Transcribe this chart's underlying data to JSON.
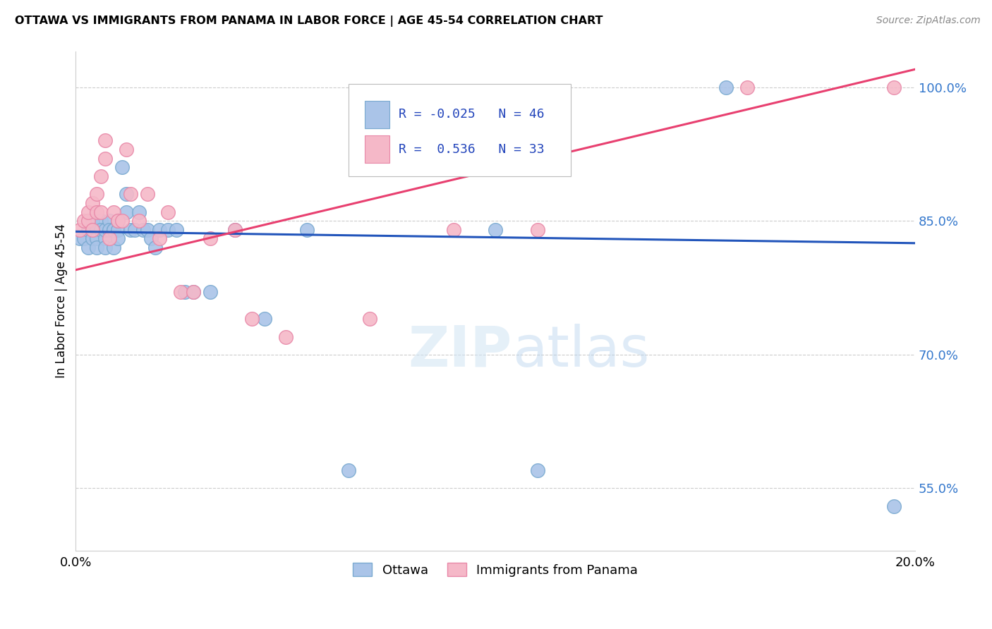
{
  "title": "OTTAWA VS IMMIGRANTS FROM PANAMA IN LABOR FORCE | AGE 45-54 CORRELATION CHART",
  "source": "Source: ZipAtlas.com",
  "ylabel": "In Labor Force | Age 45-54",
  "xlim": [
    0.0,
    0.2
  ],
  "ylim": [
    0.48,
    1.04
  ],
  "yticks": [
    0.55,
    0.7,
    0.85,
    1.0
  ],
  "ytick_labels": [
    "55.0%",
    "70.0%",
    "85.0%",
    "100.0%"
  ],
  "xticks": [
    0.0,
    0.04,
    0.08,
    0.12,
    0.16,
    0.2
  ],
  "xtick_labels": [
    "0.0%",
    "",
    "",
    "",
    "",
    "20.0%"
  ],
  "ottawa_color": "#aac4e8",
  "panama_color": "#f5b8c8",
  "ottawa_edge": "#7aaad0",
  "panama_edge": "#e888a8",
  "trend_blue": "#2255bb",
  "trend_pink": "#e84070",
  "R_ottawa": -0.025,
  "N_ottawa": 46,
  "R_panama": 0.536,
  "N_panama": 33,
  "watermark": "ZIPatlas",
  "legend_ottawa": "Ottawa",
  "legend_panama": "Immigrants from Panama",
  "blue_trend_x0": 0.0,
  "blue_trend_y0": 0.838,
  "blue_trend_x1": 0.2,
  "blue_trend_y1": 0.825,
  "pink_trend_x0": 0.0,
  "pink_trend_y0": 0.795,
  "pink_trend_x1": 0.2,
  "pink_trend_y1": 1.02,
  "ottawa_x": [
    0.001,
    0.002,
    0.003,
    0.003,
    0.004,
    0.004,
    0.005,
    0.005,
    0.005,
    0.006,
    0.006,
    0.007,
    0.007,
    0.007,
    0.008,
    0.008,
    0.009,
    0.009,
    0.009,
    0.01,
    0.01,
    0.01,
    0.011,
    0.012,
    0.012,
    0.013,
    0.014,
    0.015,
    0.016,
    0.017,
    0.018,
    0.019,
    0.02,
    0.022,
    0.024,
    0.026,
    0.028,
    0.032,
    0.038,
    0.045,
    0.055,
    0.065,
    0.1,
    0.11,
    0.155,
    0.195
  ],
  "ottawa_y": [
    0.83,
    0.83,
    0.84,
    0.82,
    0.85,
    0.83,
    0.84,
    0.83,
    0.82,
    0.85,
    0.84,
    0.83,
    0.84,
    0.82,
    0.85,
    0.84,
    0.84,
    0.82,
    0.84,
    0.84,
    0.85,
    0.83,
    0.91,
    0.88,
    0.86,
    0.84,
    0.84,
    0.86,
    0.84,
    0.84,
    0.83,
    0.82,
    0.84,
    0.84,
    0.84,
    0.77,
    0.77,
    0.77,
    0.84,
    0.74,
    0.84,
    0.57,
    0.84,
    0.57,
    1.0,
    0.53
  ],
  "panama_x": [
    0.001,
    0.002,
    0.003,
    0.003,
    0.004,
    0.004,
    0.005,
    0.005,
    0.006,
    0.006,
    0.007,
    0.007,
    0.008,
    0.009,
    0.01,
    0.011,
    0.012,
    0.013,
    0.015,
    0.017,
    0.02,
    0.022,
    0.025,
    0.028,
    0.032,
    0.038,
    0.042,
    0.05,
    0.07,
    0.09,
    0.11,
    0.16,
    0.195
  ],
  "panama_y": [
    0.84,
    0.85,
    0.85,
    0.86,
    0.84,
    0.87,
    0.86,
    0.88,
    0.86,
    0.9,
    0.92,
    0.94,
    0.83,
    0.86,
    0.85,
    0.85,
    0.93,
    0.88,
    0.85,
    0.88,
    0.83,
    0.86,
    0.77,
    0.77,
    0.83,
    0.84,
    0.74,
    0.72,
    0.74,
    0.84,
    0.84,
    1.0,
    1.0
  ]
}
